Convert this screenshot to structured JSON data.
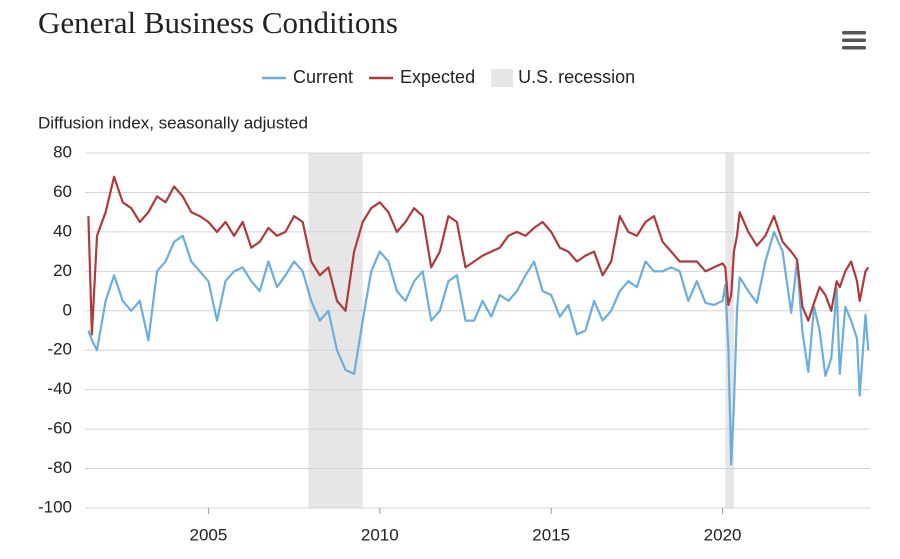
{
  "chart_data": {
    "type": "line",
    "title": "General Business Conditions",
    "y_label": "Diffusion index, seasonally adjusted",
    "recession_label": "U.S. recession",
    "recession_color": "#e6e6e6",
    "recessions": [
      [
        2007.92,
        2009.5
      ],
      [
        2020.08,
        2020.33
      ]
    ],
    "xlim": [
      2001.4,
      2024.3
    ],
    "xticks": [
      2005,
      2010,
      2015,
      2020
    ],
    "ylim": [
      -100,
      80
    ],
    "yticks": [
      -100,
      -80,
      -60,
      -40,
      -20,
      0,
      20,
      40,
      60,
      80
    ],
    "grid": true,
    "x": [
      2001.5,
      2001.6,
      2001.75,
      2002.0,
      2002.25,
      2002.5,
      2002.75,
      2003.0,
      2003.25,
      2003.5,
      2003.75,
      2004.0,
      2004.25,
      2004.5,
      2004.75,
      2005.0,
      2005.25,
      2005.5,
      2005.75,
      2006.0,
      2006.25,
      2006.5,
      2006.75,
      2007.0,
      2007.25,
      2007.5,
      2007.75,
      2008.0,
      2008.25,
      2008.5,
      2008.75,
      2009.0,
      2009.25,
      2009.5,
      2009.75,
      2010.0,
      2010.25,
      2010.5,
      2010.75,
      2011.0,
      2011.25,
      2011.5,
      2011.75,
      2012.0,
      2012.25,
      2012.5,
      2012.75,
      2013.0,
      2013.25,
      2013.5,
      2013.75,
      2014.0,
      2014.25,
      2014.5,
      2014.75,
      2015.0,
      2015.25,
      2015.5,
      2015.75,
      2016.0,
      2016.25,
      2016.5,
      2016.75,
      2017.0,
      2017.25,
      2017.5,
      2017.75,
      2018.0,
      2018.25,
      2018.5,
      2018.75,
      2019.0,
      2019.25,
      2019.5,
      2019.75,
      2020.0,
      2020.08,
      2020.17,
      2020.25,
      2020.33,
      2020.42,
      2020.5,
      2020.75,
      2021.0,
      2021.25,
      2021.5,
      2021.75,
      2022.0,
      2022.17,
      2022.33,
      2022.5,
      2022.67,
      2022.83,
      2023.0,
      2023.17,
      2023.33,
      2023.42,
      2023.58,
      2023.75,
      2023.92,
      2024.0,
      2024.17,
      2024.25
    ],
    "series": [
      {
        "name": "Current",
        "color": "#6aaee0",
        "values": [
          -10,
          -15,
          -20,
          5,
          18,
          5,
          0,
          5,
          -15,
          20,
          25,
          35,
          38,
          25,
          20,
          15,
          -5,
          15,
          20,
          22,
          15,
          10,
          25,
          12,
          18,
          25,
          20,
          5,
          -5,
          0,
          -20,
          -30,
          -32,
          -5,
          20,
          30,
          25,
          10,
          5,
          15,
          20,
          -5,
          0,
          15,
          18,
          -5,
          -5,
          5,
          -3,
          8,
          5,
          10,
          18,
          25,
          10,
          8,
          -3,
          3,
          -12,
          -10,
          5,
          -5,
          0,
          10,
          15,
          12,
          25,
          20,
          20,
          22,
          20,
          5,
          15,
          4,
          3,
          5,
          13,
          -20,
          -78,
          -48,
          0,
          17,
          10,
          4,
          25,
          40,
          30,
          -1,
          25,
          -11,
          -31,
          2,
          -10,
          -33,
          -24,
          11,
          -32,
          2,
          -5,
          -14,
          -43,
          -2,
          -20
        ]
      },
      {
        "name": "Expected",
        "color": "#b03a3a",
        "values": [
          48,
          -12,
          38,
          50,
          68,
          55,
          52,
          45,
          50,
          58,
          55,
          63,
          58,
          50,
          48,
          45,
          40,
          45,
          38,
          45,
          32,
          35,
          42,
          38,
          40,
          48,
          45,
          25,
          18,
          22,
          5,
          0,
          30,
          45,
          52,
          55,
          50,
          40,
          45,
          52,
          48,
          22,
          30,
          48,
          45,
          22,
          25,
          28,
          30,
          32,
          38,
          40,
          38,
          42,
          45,
          40,
          32,
          30,
          25,
          28,
          30,
          18,
          25,
          48,
          40,
          38,
          45,
          48,
          35,
          30,
          25,
          25,
          25,
          20,
          22,
          24,
          22,
          3,
          8,
          30,
          38,
          50,
          40,
          33,
          38,
          48,
          35,
          30,
          26,
          2,
          -5,
          4,
          12,
          8,
          0,
          15,
          12,
          20,
          25,
          15,
          5,
          20,
          22
        ]
      }
    ]
  }
}
